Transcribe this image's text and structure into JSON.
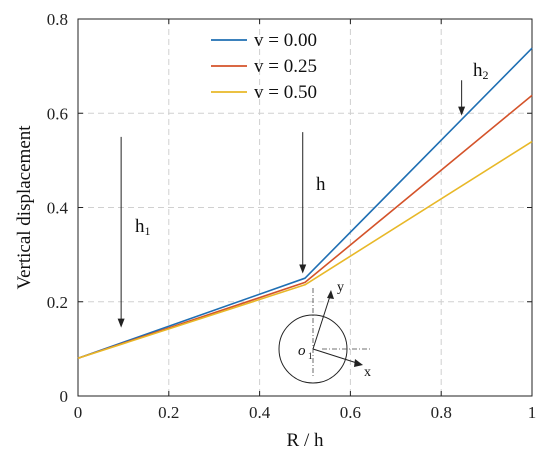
{
  "chart_data": {
    "type": "line",
    "xlabel": "R / h",
    "ylabel": "Vertical displacement",
    "xlim": [
      0,
      1
    ],
    "ylim": [
      0,
      0.8
    ],
    "xticks": [
      0,
      0.2,
      0.4,
      0.6,
      0.8,
      1
    ],
    "xtick_labels": [
      "0",
      "0.2",
      "0.4",
      "0.6",
      "0.8",
      "1"
    ],
    "yticks": [
      0,
      0.2,
      0.4,
      0.6,
      0.8
    ],
    "ytick_labels": [
      "0",
      "0.2",
      "0.4",
      "0.6",
      "0.8"
    ],
    "grid": true,
    "grid_style": "dashed",
    "legend_position": "top-center",
    "series": [
      {
        "name": "v = 0.00",
        "color": "#1f6fb3",
        "x": [
          0,
          0.5,
          1
        ],
        "y": [
          0.08,
          0.25,
          0.738
        ]
      },
      {
        "name": "v = 0.25",
        "color": "#d4532a",
        "x": [
          0,
          0.5,
          1
        ],
        "y": [
          0.08,
          0.241,
          0.638
        ]
      },
      {
        "name": "v = 0.50",
        "color": "#e8b828",
        "x": [
          0,
          0.5,
          1
        ],
        "y": [
          0.08,
          0.236,
          0.54
        ]
      }
    ],
    "annotations": [
      {
        "text": "h",
        "sub": "1",
        "arrow_x": 0.095,
        "arrow_y_from": 0.55,
        "arrow_y_to": 0.145
      },
      {
        "text": "h",
        "sub": "",
        "arrow_x": 0.495,
        "arrow_y_from": 0.56,
        "arrow_y_to": 0.26
      },
      {
        "text": "h",
        "sub": "2",
        "arrow_x": 0.845,
        "arrow_y_from": 0.67,
        "arrow_y_to": 0.595
      }
    ],
    "inset": {
      "origin_label": "o",
      "origin_sub": "1",
      "axis_x_label": "x",
      "axis_y_label": "y"
    }
  }
}
